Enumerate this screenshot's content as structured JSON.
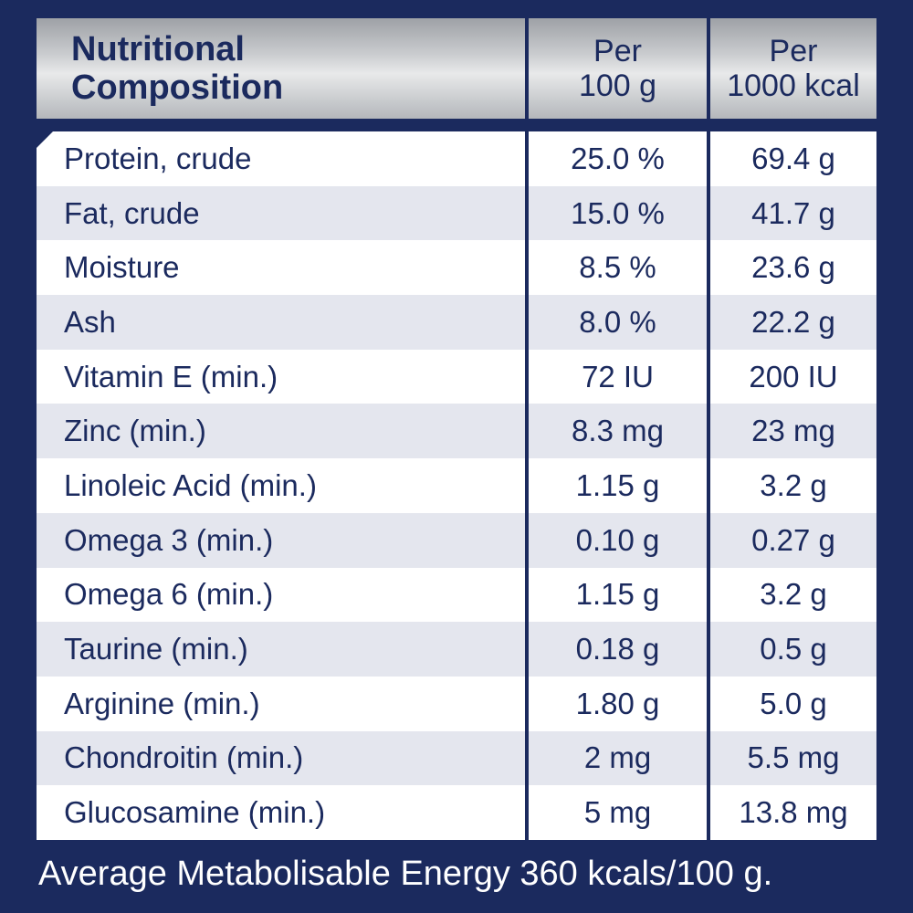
{
  "header": {
    "col1_line1": "Nutritional",
    "col1_line2": "Composition",
    "col2_line1": "Per",
    "col2_line2": "100 g",
    "col3_line1": "Per",
    "col3_line2": "1000 kcal"
  },
  "rows": [
    {
      "nutrient": "Protein, crude",
      "per100g": "25.0 %",
      "per1000kcal": "69.4 g"
    },
    {
      "nutrient": "Fat, crude",
      "per100g": "15.0 %",
      "per1000kcal": "41.7 g"
    },
    {
      "nutrient": "Moisture",
      "per100g": "8.5 %",
      "per1000kcal": "23.6 g"
    },
    {
      "nutrient": "Ash",
      "per100g": "8.0 %",
      "per1000kcal": "22.2 g"
    },
    {
      "nutrient": "Vitamin E (min.)",
      "per100g": "72 IU",
      "per1000kcal": "200 IU"
    },
    {
      "nutrient": "Zinc (min.)",
      "per100g": "8.3 mg",
      "per1000kcal": "23 mg"
    },
    {
      "nutrient": "Linoleic Acid (min.)",
      "per100g": "1.15 g",
      "per1000kcal": "3.2 g"
    },
    {
      "nutrient": "Omega 3 (min.)",
      "per100g": "0.10 g",
      "per1000kcal": "0.27 g"
    },
    {
      "nutrient": "Omega 6 (min.)",
      "per100g": "1.15 g",
      "per1000kcal": "3.2 g"
    },
    {
      "nutrient": "Taurine (min.)",
      "per100g": "0.18 g",
      "per1000kcal": "0.5 g"
    },
    {
      "nutrient": "Arginine (min.)",
      "per100g": "1.80 g",
      "per1000kcal": "5.0 g"
    },
    {
      "nutrient": "Chondroitin (min.)",
      "per100g": "2 mg",
      "per1000kcal": "5.5 mg"
    },
    {
      "nutrient": "Glucosamine (min.)",
      "per100g": "5 mg",
      "per1000kcal": "13.8 mg"
    }
  ],
  "footer": "Average Metabolisable Energy 360 kcals/100 g.",
  "colors": {
    "navy": "#1b2a5e",
    "stripe": "#e4e6ee",
    "header_silver": "#c9cbce"
  }
}
